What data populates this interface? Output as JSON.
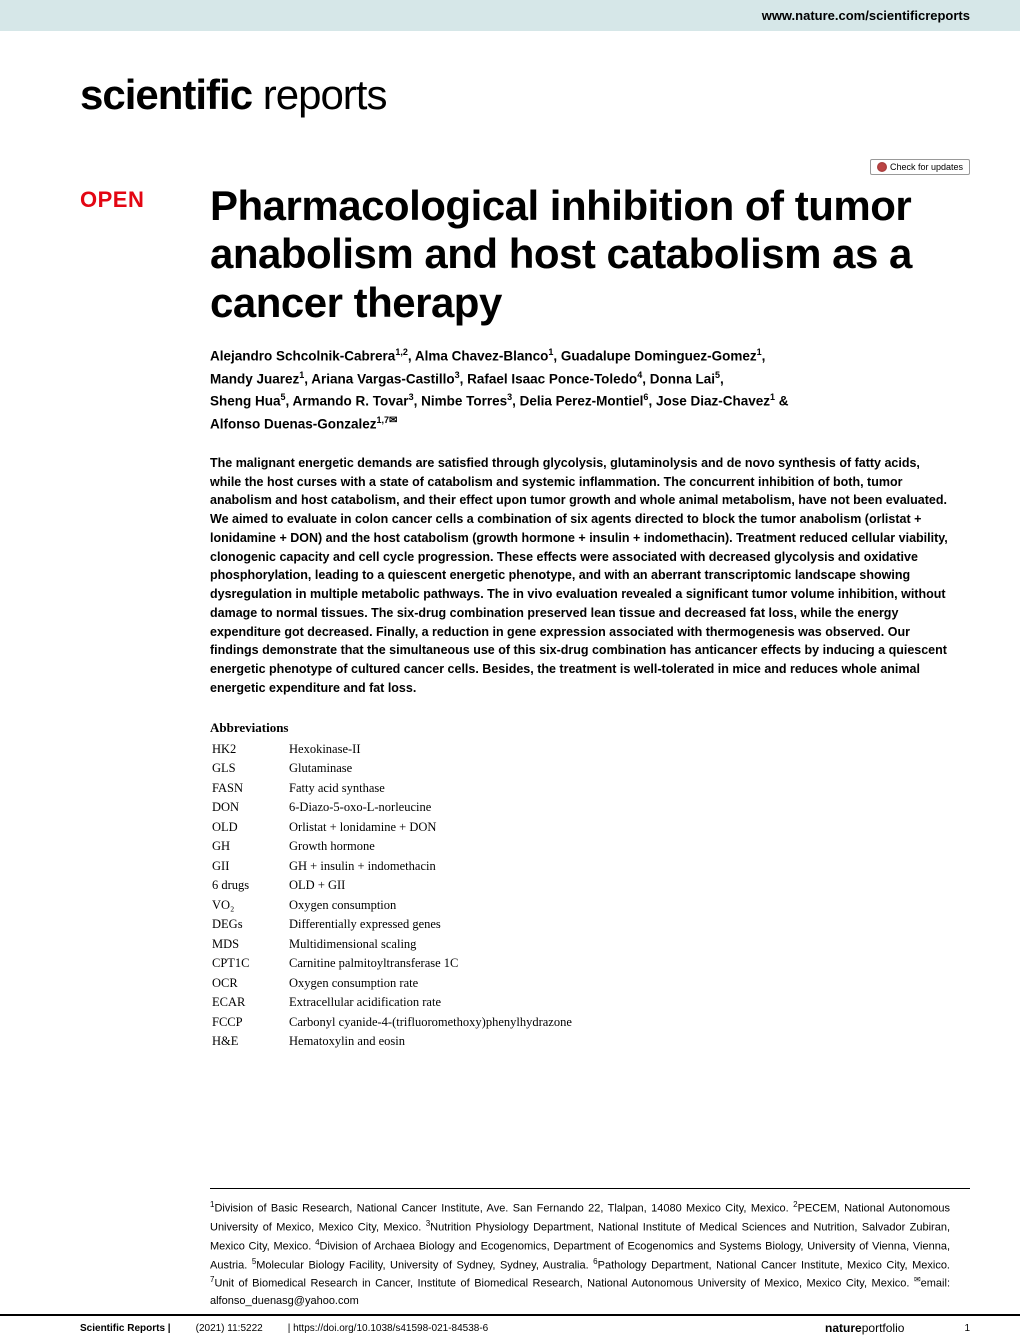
{
  "top_banner": {
    "url": "www.nature.com/scientificreports"
  },
  "journal_logo": {
    "bold": "scientific",
    "light": " reports"
  },
  "check_updates": {
    "label": "Check for updates"
  },
  "open_badge": "OPEN",
  "title": "Pharmacological inhibition of tumor anabolism and host catabolism as a cancer therapy",
  "authors_lines": [
    "Alejandro Schcolnik-Cabrera<sup>1,2</sup>, Alma Chavez-Blanco<sup>1</sup>, Guadalupe Dominguez-Gomez<sup>1</sup>,",
    "Mandy Juarez<sup>1</sup>, Ariana Vargas-Castillo<sup>3</sup>, Rafael Isaac Ponce-Toledo<sup>4</sup>, Donna Lai<sup>5</sup>,",
    "Sheng Hua<sup>5</sup>, Armando R. Tovar<sup>3</sup>, Nimbe Torres<sup>3</sup>, Delia Perez-Montiel<sup>6</sup>, Jose Diaz-Chavez<sup>1</sup> &",
    "Alfonso Duenas-Gonzalez<sup>1,7</sup><span class='envelope'>✉</span>"
  ],
  "abstract": "The malignant energetic demands are satisfied through glycolysis, glutaminolysis and de novo synthesis of fatty acids, while the host curses with a state of catabolism and systemic inflammation. The concurrent inhibition of both, tumor anabolism and host catabolism, and their effect upon tumor growth and whole animal metabolism, have not been evaluated. We aimed to evaluate in colon cancer cells a combination of six agents directed to block the tumor anabolism (orlistat + lonidamine + DON) and the host catabolism (growth hormone + insulin + indomethacin). Treatment reduced cellular viability, clonogenic capacity and cell cycle progression. These effects were associated with decreased glycolysis and oxidative phosphorylation, leading to a quiescent energetic phenotype, and with an aberrant transcriptomic landscape showing dysregulation in multiple metabolic pathways. The in vivo evaluation revealed a significant tumor volume inhibition, without damage to normal tissues. The six-drug combination preserved lean tissue and decreased fat loss, while the energy expenditure got decreased. Finally, a reduction in gene expression associated with thermogenesis was observed. Our findings demonstrate that the simultaneous use of this six-drug combination has anticancer effects by inducing a quiescent energetic phenotype of cultured cancer cells. Besides, the treatment is well-tolerated in mice and reduces whole animal energetic expenditure and fat loss.",
  "abbreviations_heading": "Abbreviations",
  "abbreviations": [
    {
      "abbr": "HK2",
      "def": "Hexokinase-II"
    },
    {
      "abbr": "GLS",
      "def": "Glutaminase"
    },
    {
      "abbr": "FASN",
      "def": "Fatty acid synthase"
    },
    {
      "abbr": "DON",
      "def": "6-Diazo-5-oxo-L-norleucine"
    },
    {
      "abbr": "OLD",
      "def": "Orlistat + lonidamine + DON"
    },
    {
      "abbr": "GH",
      "def": "Growth hormone"
    },
    {
      "abbr": "GII",
      "def": "GH + insulin + indomethacin"
    },
    {
      "abbr": "6 drugs",
      "def": "OLD + GII"
    },
    {
      "abbr": "VO₂",
      "def": "Oxygen consumption"
    },
    {
      "abbr": "DEGs",
      "def": "Differentially expressed genes"
    },
    {
      "abbr": "MDS",
      "def": "Multidimensional scaling"
    },
    {
      "abbr": "CPT1C",
      "def": "Carnitine palmitoyltransferase 1C"
    },
    {
      "abbr": "OCR",
      "def": "Oxygen consumption rate"
    },
    {
      "abbr": "ECAR",
      "def": "Extracellular acidification rate"
    },
    {
      "abbr": "FCCP",
      "def": "Carbonyl cyanide-4-(trifluoromethoxy)phenylhydrazone"
    },
    {
      "abbr": "H&E",
      "def": "Hematoxylin and eosin"
    }
  ],
  "affiliations": "<sup>1</sup>Division of Basic Research, National Cancer Institute, Ave. San Fernando 22, Tlalpan, 14080 Mexico City, Mexico. <sup>2</sup>PECEM, National Autonomous University of Mexico, Mexico City, Mexico. <sup>3</sup>Nutrition Physiology Department, National Institute of Medical Sciences and Nutrition, Salvador Zubiran, Mexico City, Mexico. <sup>4</sup>Division of Archaea Biology and Ecogenomics, Department of Ecogenomics and Systems Biology, University of Vienna, Vienna, Austria. <sup>5</sup>Molecular Biology Facility, University of Sydney, Sydney, Australia. <sup>6</sup>Pathology Department, National Cancer Institute, Mexico City, Mexico. <sup>7</sup>Unit of Biomedical Research in Cancer, Institute of Biomedical Research, National Autonomous University of Mexico, Mexico City, Mexico. <sup>✉</sup>email: alfonso_duenasg@yahoo.com",
  "footer": {
    "journal": "Scientific Reports |",
    "citation": "(2021) 11:5222",
    "doi": "| https://doi.org/10.1038/s41598-021-84538-6",
    "publisher_bold": "nature",
    "publisher_light": "portfolio",
    "page": "1"
  },
  "colors": {
    "banner_bg": "#d6e7e8",
    "open_red": "#e30613",
    "text": "#000000",
    "bg": "#ffffff"
  }
}
